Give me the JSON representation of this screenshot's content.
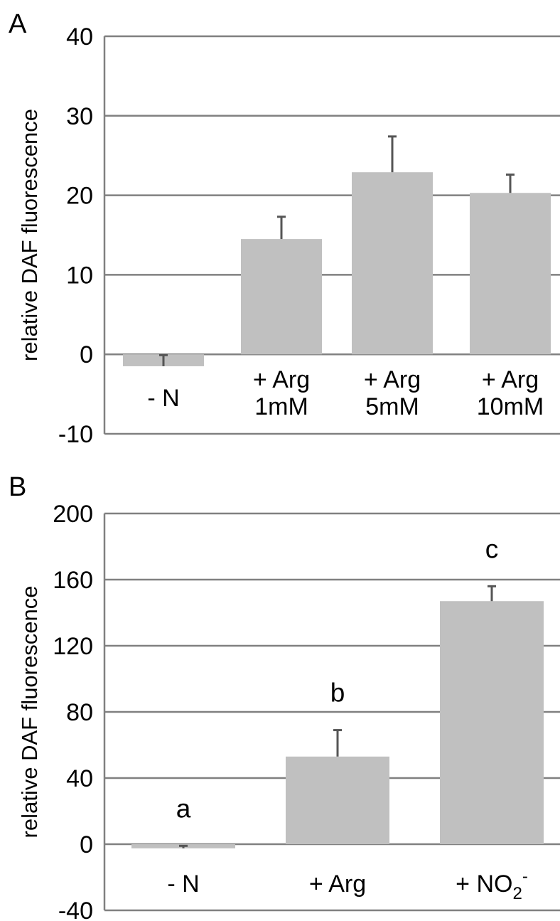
{
  "chart_data": [
    {
      "panel": "A",
      "type": "bar",
      "ylabel": "relative DAF fluorescence",
      "ylim": [
        -10,
        40
      ],
      "yticks": [
        -10,
        0,
        10,
        20,
        30,
        40
      ],
      "grid": true,
      "categories": [
        [
          "- N"
        ],
        [
          "+ Arg",
          "1mM"
        ],
        [
          "+ Arg",
          "5mM"
        ],
        [
          "+ Arg",
          "10mM"
        ]
      ],
      "values": [
        -1.5,
        14.5,
        22.9,
        20.3
      ],
      "errors": [
        1.4,
        2.8,
        4.5,
        2.3
      ],
      "bar_color": "#c0c0c0",
      "error_color": "#555555"
    },
    {
      "panel": "B",
      "type": "bar",
      "ylabel": "relative DAF fluorescence",
      "ylim": [
        -40,
        200
      ],
      "yticks": [
        -40,
        0,
        40,
        80,
        120,
        160,
        200
      ],
      "grid": true,
      "categories": [
        [
          "- N"
        ],
        [
          "+ Arg"
        ],
        [
          "+ NO",
          "2",
          "-"
        ]
      ],
      "values": [
        -2.5,
        53,
        147
      ],
      "errors": [
        1.5,
        16,
        9
      ],
      "significance": [
        "a",
        "b",
        "c"
      ],
      "bar_color": "#c0c0c0",
      "error_color": "#555555"
    }
  ]
}
